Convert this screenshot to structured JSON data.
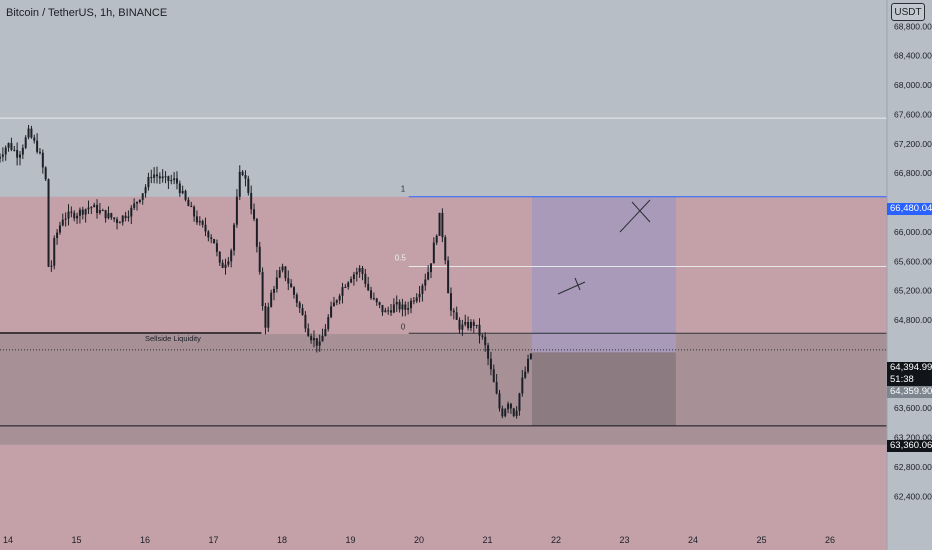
{
  "header": {
    "title": "Bitcoin / TetherUS, 1h, BINANCE",
    "currency_button": "USDT"
  },
  "colors": {
    "background": "#b7bec6",
    "premium_zone": "#c4a1a8",
    "discount_zone": "#a79197",
    "position_target": "#a89ab8",
    "position_stop": "#8c7b81",
    "candle": "#1c2026",
    "accent_blue": "#2962ff"
  },
  "price_tags": {
    "high": "66,480.04",
    "current_price": "64,394.99",
    "countdown": "51:38",
    "entry": "64,359.90",
    "low": "63,360.06"
  },
  "fib_labels": {
    "level_1": "1",
    "level_05": "0.5",
    "level_0": "0"
  },
  "annotations": {
    "liquidity": "Sellside Liquidity"
  },
  "chart_data": {
    "type": "candlestick",
    "title": "Bitcoin / TetherUS, 1h, BINANCE",
    "symbol": "BTCUSDT",
    "interval": "1h",
    "exchange": "BINANCE",
    "currency": "USDT",
    "xlabel": "",
    "ylabel": "",
    "x_ticks": [
      "14",
      "15",
      "16",
      "17",
      "18",
      "19",
      "20",
      "21",
      "22",
      "23",
      "24",
      "25",
      "26"
    ],
    "y_ticks": [
      62400,
      62800,
      63200,
      63600,
      64000,
      64400,
      64800,
      65200,
      65600,
      66000,
      66400,
      66800,
      67200,
      67600,
      68000,
      68400,
      68800
    ],
    "y_tick_labels": [
      "62,400.00",
      "62,800.00",
      "63,200.00",
      "63,600.00",
      "64,000.00",
      "64,400.00",
      "64,800.00",
      "65,200.00",
      "65,600.00",
      "66,000.00",
      "66,400.00",
      "66,800.00",
      "67,200.00",
      "67,600.00",
      "68,000.00",
      "68,400.00",
      "68,800.00"
    ],
    "ylim": [
      62200,
      69200
    ],
    "x_range_days": [
      13.8,
      26.8
    ],
    "price_path": [
      [
        13.8,
        66950
      ],
      [
        14.0,
        67200
      ],
      [
        14.15,
        67050
      ],
      [
        14.3,
        67350
      ],
      [
        14.45,
        67100
      ],
      [
        14.55,
        66700
      ],
      [
        14.6,
        65300
      ],
      [
        14.68,
        65900
      ],
      [
        14.8,
        66200
      ],
      [
        15.0,
        66250
      ],
      [
        15.2,
        66350
      ],
      [
        15.4,
        66250
      ],
      [
        15.6,
        66150
      ],
      [
        15.8,
        66300
      ],
      [
        16.0,
        66600
      ],
      [
        16.1,
        66800
      ],
      [
        16.3,
        66700
      ],
      [
        16.45,
        66700
      ],
      [
        16.6,
        66400
      ],
      [
        16.8,
        66100
      ],
      [
        17.0,
        65900
      ],
      [
        17.1,
        65500
      ],
      [
        17.25,
        65700
      ],
      [
        17.4,
        66900
      ],
      [
        17.5,
        66600
      ],
      [
        17.6,
        66100
      ],
      [
        17.75,
        64700
      ],
      [
        17.85,
        65200
      ],
      [
        18.0,
        65500
      ],
      [
        18.2,
        65100
      ],
      [
        18.4,
        64600
      ],
      [
        18.55,
        64450
      ],
      [
        18.7,
        64900
      ],
      [
        18.85,
        65200
      ],
      [
        19.0,
        65400
      ],
      [
        19.15,
        65500
      ],
      [
        19.3,
        65100
      ],
      [
        19.5,
        64900
      ],
      [
        19.65,
        65000
      ],
      [
        19.8,
        64950
      ],
      [
        20.0,
        65200
      ],
      [
        20.15,
        65500
      ],
      [
        20.3,
        66200
      ],
      [
        20.37,
        65800
      ],
      [
        20.45,
        64950
      ],
      [
        20.6,
        64700
      ],
      [
        20.8,
        64750
      ],
      [
        20.95,
        64500
      ],
      [
        21.05,
        64100
      ],
      [
        21.2,
        63500
      ],
      [
        21.3,
        63700
      ],
      [
        21.4,
        63500
      ],
      [
        21.5,
        63950
      ],
      [
        21.65,
        64394.99
      ]
    ],
    "levels": {
      "high": 66480.04,
      "fib_0_5": 65530,
      "fib_0": 64620,
      "upper_line": 67550,
      "sellside_liquidity": 64610,
      "current_price": 64394.99,
      "entry": 64359.9,
      "low": 63360.06
    },
    "zones": {
      "premium": [
        64610,
        66480.04
      ],
      "discount": [
        63100,
        64610
      ]
    },
    "position": {
      "entry": 64359.9,
      "target": 66480.04,
      "stop": 63360.06,
      "start_day": 21.65,
      "end_day": 23.75
    }
  }
}
